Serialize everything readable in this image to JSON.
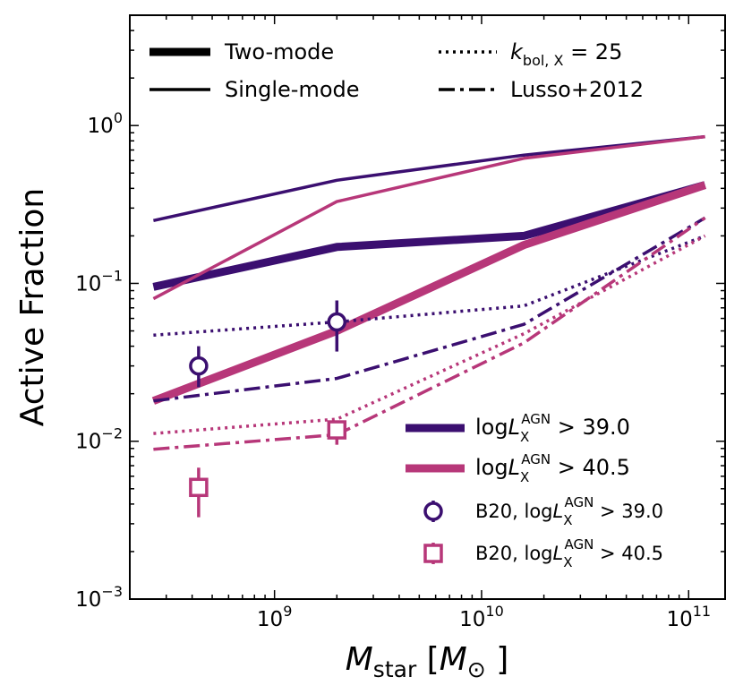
{
  "chart_data": {
    "type": "line",
    "xlabel": "M_star [M_⊙]",
    "ylabel": "Active Fraction",
    "xscale": "log",
    "yscale": "log",
    "xlim": [
      200000000,
      150000000000
    ],
    "ylim": [
      0.001,
      5
    ],
    "x_ticks": [
      {
        "value": 1000000000,
        "base": "10",
        "exp": "9"
      },
      {
        "value": 10000000000,
        "base": "10",
        "exp": "10"
      },
      {
        "value": 100000000000,
        "base": "10",
        "exp": "11"
      }
    ],
    "y_ticks": [
      {
        "value": 0.001,
        "base": "10",
        "exp": "−3"
      },
      {
        "value": 0.01,
        "base": "10",
        "exp": "−2"
      },
      {
        "value": 0.1,
        "base": "10",
        "exp": "−1"
      },
      {
        "value": 1,
        "base": "10",
        "exp": "0"
      }
    ],
    "colors": {
      "purple": "#3b0f70",
      "pink": "#b73779"
    },
    "series": [
      {
        "style": "two-mode",
        "color": "purple",
        "x": [
          260000000,
          2000000000,
          16000000000,
          120000000000
        ],
        "y": [
          0.095,
          0.17,
          0.2,
          0.42
        ]
      },
      {
        "style": "two-mode",
        "color": "pink",
        "x": [
          260000000,
          2000000000,
          16000000000,
          120000000000
        ],
        "y": [
          0.018,
          0.05,
          0.175,
          0.42
        ]
      },
      {
        "style": "single-mode",
        "color": "purple",
        "x": [
          260000000,
          2000000000,
          16000000000,
          120000000000
        ],
        "y": [
          0.25,
          0.45,
          0.65,
          0.85
        ]
      },
      {
        "style": "single-mode",
        "color": "pink",
        "x": [
          260000000,
          2000000000,
          16000000000,
          120000000000
        ],
        "y": [
          0.08,
          0.33,
          0.62,
          0.85
        ]
      },
      {
        "style": "kbol25",
        "color": "purple",
        "x": [
          260000000,
          2000000000,
          16000000000,
          120000000000
        ],
        "y": [
          0.047,
          0.057,
          0.072,
          0.2
        ]
      },
      {
        "style": "kbol25",
        "color": "pink",
        "x": [
          260000000,
          2000000000,
          16000000000,
          120000000000
        ],
        "y": [
          0.0112,
          0.0138,
          0.048,
          0.2
        ]
      },
      {
        "style": "lusso2012",
        "color": "purple",
        "x": [
          260000000,
          2000000000,
          16000000000,
          120000000000
        ],
        "y": [
          0.018,
          0.025,
          0.055,
          0.26
        ]
      },
      {
        "style": "lusso2012",
        "color": "pink",
        "x": [
          260000000,
          2000000000,
          16000000000,
          120000000000
        ],
        "y": [
          0.0089,
          0.011,
          0.042,
          0.26
        ]
      }
    ],
    "points": [
      {
        "marker": "circle",
        "color": "purple",
        "x": 430000000,
        "y": 0.03,
        "ylo": 0.022,
        "yhi": 0.04
      },
      {
        "marker": "circle",
        "color": "purple",
        "x": 2000000000,
        "y": 0.057,
        "ylo": 0.037,
        "yhi": 0.078
      },
      {
        "marker": "square",
        "color": "pink",
        "x": 430000000,
        "y": 0.0051,
        "ylo": 0.0033,
        "yhi": 0.0068
      },
      {
        "marker": "square",
        "color": "pink",
        "x": 2000000000,
        "y": 0.0118,
        "ylo": 0.0095,
        "yhi": 0.0135
      }
    ],
    "legend_top": [
      {
        "style": "two-mode",
        "label": "Two-mode"
      },
      {
        "style": "single-mode",
        "label": "Single-mode"
      },
      {
        "style": "kbol25",
        "label_pre": "k",
        "label_sub": "bol, X",
        "label_post": " = 25"
      },
      {
        "style": "lusso2012",
        "label": "Lusso+2012"
      }
    ],
    "legend_bottom": [
      {
        "kind": "line",
        "color": "purple",
        "pre": "log",
        "var": "L",
        "sub": "X",
        "sup": "AGN",
        "post": " >  39.0"
      },
      {
        "kind": "line",
        "color": "pink",
        "pre": "log",
        "var": "L",
        "sub": "X",
        "sup": "AGN",
        "post": " >  40.5"
      },
      {
        "kind": "circle",
        "color": "purple",
        "pre": "B20, log",
        "var": "L",
        "sub": "X",
        "sup": "AGN",
        "post": " > 39.0"
      },
      {
        "kind": "square",
        "color": "pink",
        "pre": "B20, log",
        "var": "L",
        "sub": "X",
        "sup": "AGN",
        "post": " > 40.5"
      }
    ]
  }
}
